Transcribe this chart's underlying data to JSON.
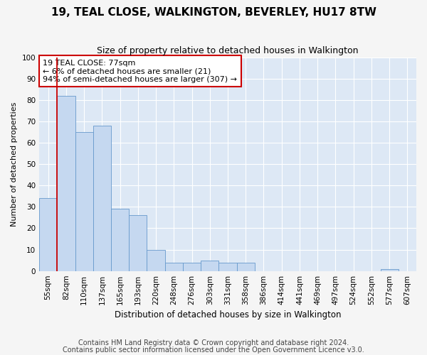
{
  "title": "19, TEAL CLOSE, WALKINGTON, BEVERLEY, HU17 8TW",
  "subtitle": "Size of property relative to detached houses in Walkington",
  "xlabel": "Distribution of detached houses by size in Walkington",
  "ylabel": "Number of detached properties",
  "bar_labels": [
    "55sqm",
    "82sqm",
    "110sqm",
    "137sqm",
    "165sqm",
    "193sqm",
    "220sqm",
    "248sqm",
    "276sqm",
    "303sqm",
    "331sqm",
    "358sqm",
    "386sqm",
    "414sqm",
    "441sqm",
    "469sqm",
    "497sqm",
    "524sqm",
    "552sqm",
    "577sqm",
    "607sqm"
  ],
  "bar_values": [
    34,
    82,
    65,
    68,
    29,
    26,
    10,
    4,
    4,
    5,
    4,
    4,
    0,
    0,
    0,
    0,
    0,
    0,
    0,
    1,
    0
  ],
  "bar_color": "#c5d8f0",
  "bar_edge_color": "#6699cc",
  "highlight_color": "#cc0000",
  "vline_x": 0.5,
  "annotation_text": "19 TEAL CLOSE: 77sqm\n← 6% of detached houses are smaller (21)\n94% of semi-detached houses are larger (307) →",
  "annotation_box_color": "#ffffff",
  "annotation_border_color": "#cc0000",
  "ylim": [
    0,
    100
  ],
  "yticks": [
    0,
    10,
    20,
    30,
    40,
    50,
    60,
    70,
    80,
    90,
    100
  ],
  "plot_bg_color": "#dde8f5",
  "fig_bg_color": "#f5f5f5",
  "grid_color": "#ffffff",
  "footer1": "Contains HM Land Registry data © Crown copyright and database right 2024.",
  "footer2": "Contains public sector information licensed under the Open Government Licence v3.0.",
  "title_fontsize": 11,
  "subtitle_fontsize": 9,
  "annotation_fontsize": 8,
  "tick_fontsize": 7.5,
  "ylabel_fontsize": 8,
  "xlabel_fontsize": 8.5,
  "footer_fontsize": 7
}
